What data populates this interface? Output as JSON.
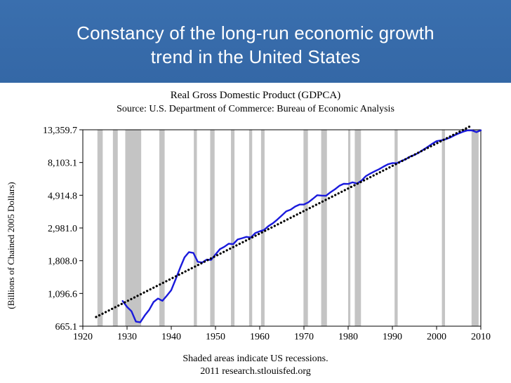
{
  "slide": {
    "title_line1": "Constancy of the long-run economic growth",
    "title_line2": "trend in the United States"
  },
  "chart_data": {
    "type": "line",
    "title": "Real Gross Domestic Product (GDPCA)",
    "subtitle": "Source: U.S. Department of Commerce: Bureau of Economic Analysis",
    "ylabel": "(Billions of Chained 2005 Dollars)",
    "xlabel": "",
    "scale": "log",
    "xlim": [
      1920,
      2010
    ],
    "ylim": [
      665.1,
      13359.7
    ],
    "x_ticks": [
      1920,
      1930,
      1940,
      1950,
      1960,
      1970,
      1980,
      1990,
      2000,
      2010
    ],
    "y_ticks": [
      665.1,
      1096.6,
      1808.0,
      2981.0,
      4914.8,
      8103.1,
      13359.7
    ],
    "y_tick_labels": [
      "665.1",
      "1,096.6",
      "1,808.0",
      "2,981.0",
      "4,914.8",
      "8,103.1",
      "13,359.7"
    ],
    "footnote_line1": "Shaded areas indicate US recessions.",
    "footnote_line2": "2011 research.stlouisfed.org",
    "recessions": [
      [
        1923.3,
        1924.5
      ],
      [
        1926.8,
        1927.9
      ],
      [
        1929.6,
        1933.2
      ],
      [
        1937.3,
        1938.5
      ],
      [
        1945.1,
        1945.8
      ],
      [
        1948.8,
        1949.8
      ],
      [
        1953.5,
        1954.3
      ],
      [
        1957.6,
        1958.3
      ],
      [
        1960.3,
        1961.1
      ],
      [
        1969.9,
        1970.9
      ],
      [
        1973.9,
        1975.2
      ],
      [
        1980.0,
        1980.5
      ],
      [
        1981.5,
        1982.9
      ],
      [
        1990.5,
        1991.2
      ],
      [
        2001.2,
        2001.9
      ],
      [
        2007.9,
        2009.5
      ]
    ],
    "series": [
      {
        "name": "GDPCA",
        "color": "#1a1adc",
        "x": [
          1929,
          1930,
          1931,
          1932,
          1933,
          1934,
          1935,
          1936,
          1937,
          1938,
          1939,
          1940,
          1941,
          1942,
          1943,
          1944,
          1945,
          1946,
          1947,
          1948,
          1949,
          1950,
          1951,
          1952,
          1953,
          1954,
          1955,
          1956,
          1957,
          1958,
          1959,
          1960,
          1961,
          1962,
          1963,
          1964,
          1965,
          1966,
          1967,
          1968,
          1969,
          1970,
          1971,
          1972,
          1973,
          1974,
          1975,
          1976,
          1977,
          1978,
          1979,
          1980,
          1981,
          1982,
          1983,
          1984,
          1985,
          1986,
          1987,
          1988,
          1989,
          1990,
          1991,
          1992,
          1993,
          1994,
          1995,
          1996,
          1997,
          1998,
          1999,
          2000,
          2001,
          2002,
          2003,
          2004,
          2005,
          2006,
          2007,
          2008,
          2009,
          2010
        ],
        "values": [
          977,
          893,
          836,
          714,
          706,
          783,
          853,
          963,
          1014,
          980,
          1060,
          1154,
          1364,
          1620,
          1903,
          2062,
          2036,
          1776,
          1759,
          1838,
          1830,
          1990,
          2157,
          2238,
          2345,
          2330,
          2501,
          2550,
          2601,
          2578,
          2760,
          2830,
          2896,
          3073,
          3207,
          3393,
          3610,
          3846,
          3943,
          4133,
          4262,
          4270,
          4413,
          4648,
          4918,
          4891,
          4880,
          5141,
          5378,
          5678,
          5855,
          5839,
          5987,
          5871,
          6136,
          6577,
          6849,
          7087,
          7313,
          7614,
          7886,
          8034,
          8015,
          8287,
          8523,
          8871,
          9094,
          9434,
          9854,
          10284,
          10780,
          11226,
          11347,
          11553,
          11841,
          12264,
          12638,
          12976,
          13229,
          13229,
          12881,
          13250
        ]
      },
      {
        "name": "Trend",
        "color": "#000000",
        "x": [
          1923,
          2008
        ],
        "values": [
          765,
          14300
        ]
      }
    ]
  }
}
